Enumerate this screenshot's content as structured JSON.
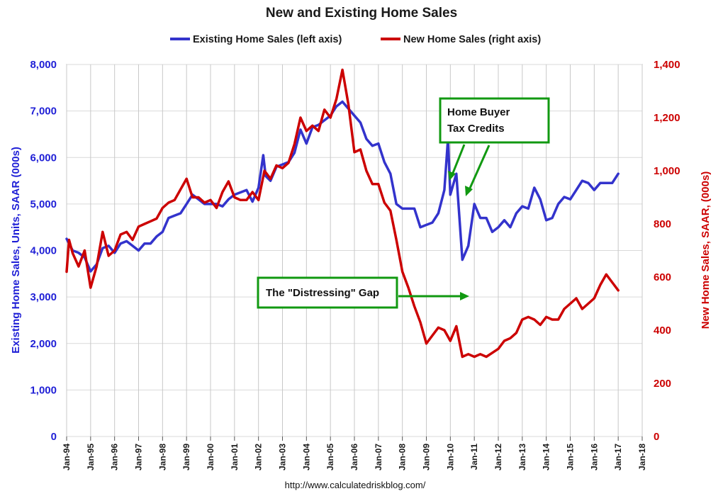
{
  "chart_data": {
    "type": "line",
    "title": "New and Existing Home Sales",
    "xlabel": "",
    "ylabel_left": "Existing Home Sales, Units, SAAR (000s)",
    "ylabel_right": "New Home Sales, SAAR, (000s)",
    "ylim_left": [
      0,
      8000
    ],
    "ylim_right": [
      0,
      1400
    ],
    "left_ticks": [
      "0",
      "1,000",
      "2,000",
      "3,000",
      "4,000",
      "5,000",
      "6,000",
      "7,000",
      "8,000"
    ],
    "right_ticks": [
      "0",
      "200",
      "400",
      "600",
      "800",
      "1,000",
      "1,200",
      "1,400"
    ],
    "x_ticks": [
      "Jan-94",
      "Jan-95",
      "Jan-96",
      "Jan-97",
      "Jan-98",
      "Jan-99",
      "Jan-00",
      "Jan-01",
      "Jan-02",
      "Jan-03",
      "Jan-04",
      "Jan-05",
      "Jan-06",
      "Jan-07",
      "Jan-08",
      "Jan-09",
      "Jan-10",
      "Jan-11",
      "Jan-12",
      "Jan-13",
      "Jan-14",
      "Jan-15",
      "Jan-16",
      "Jan-17",
      "Jan-18"
    ],
    "xlim": [
      1994.0,
      2018.0
    ],
    "grid": true,
    "legend_placement": "top",
    "series": [
      {
        "name": "Existing Home Sales (left axis)",
        "axis": "left",
        "color": "#3333cc",
        "points": [
          [
            1994.0,
            4250
          ],
          [
            1994.25,
            4000
          ],
          [
            1994.5,
            3950
          ],
          [
            1994.75,
            3850
          ],
          [
            1995.0,
            3550
          ],
          [
            1995.25,
            3700
          ],
          [
            1995.5,
            4050
          ],
          [
            1995.75,
            4100
          ],
          [
            1996.0,
            3950
          ],
          [
            1996.25,
            4150
          ],
          [
            1996.5,
            4200
          ],
          [
            1996.75,
            4100
          ],
          [
            1997.0,
            4000
          ],
          [
            1997.25,
            4150
          ],
          [
            1997.5,
            4150
          ],
          [
            1997.75,
            4300
          ],
          [
            1998.0,
            4400
          ],
          [
            1998.25,
            4700
          ],
          [
            1998.5,
            4750
          ],
          [
            1998.75,
            4800
          ],
          [
            1999.0,
            5000
          ],
          [
            1999.25,
            5200
          ],
          [
            1999.5,
            5100
          ],
          [
            1999.75,
            5000
          ],
          [
            2000.0,
            5000
          ],
          [
            2000.25,
            5000
          ],
          [
            2000.5,
            4950
          ],
          [
            2000.75,
            5100
          ],
          [
            2001.0,
            5200
          ],
          [
            2001.25,
            5250
          ],
          [
            2001.5,
            5300
          ],
          [
            2001.75,
            5050
          ],
          [
            2002.0,
            5350
          ],
          [
            2002.2,
            6050
          ],
          [
            2002.3,
            5600
          ],
          [
            2002.5,
            5500
          ],
          [
            2002.75,
            5800
          ],
          [
            2003.0,
            5850
          ],
          [
            2003.25,
            5900
          ],
          [
            2003.5,
            6100
          ],
          [
            2003.75,
            6600
          ],
          [
            2004.0,
            6300
          ],
          [
            2004.25,
            6650
          ],
          [
            2004.5,
            6700
          ],
          [
            2004.75,
            6800
          ],
          [
            2005.0,
            6900
          ],
          [
            2005.25,
            7100
          ],
          [
            2005.5,
            7200
          ],
          [
            2005.75,
            7050
          ],
          [
            2006.0,
            6900
          ],
          [
            2006.25,
            6750
          ],
          [
            2006.5,
            6400
          ],
          [
            2006.75,
            6250
          ],
          [
            2007.0,
            6300
          ],
          [
            2007.25,
            5900
          ],
          [
            2007.5,
            5650
          ],
          [
            2007.75,
            5000
          ],
          [
            2008.0,
            4900
          ],
          [
            2008.25,
            4900
          ],
          [
            2008.5,
            4900
          ],
          [
            2008.75,
            4500
          ],
          [
            2009.0,
            4550
          ],
          [
            2009.25,
            4600
          ],
          [
            2009.5,
            4800
          ],
          [
            2009.75,
            5300
          ],
          [
            2009.9,
            6400
          ],
          [
            2010.0,
            5200
          ],
          [
            2010.25,
            5650
          ],
          [
            2010.5,
            3800
          ],
          [
            2010.75,
            4100
          ],
          [
            2011.0,
            5000
          ],
          [
            2011.25,
            4700
          ],
          [
            2011.5,
            4700
          ],
          [
            2011.75,
            4400
          ],
          [
            2012.0,
            4500
          ],
          [
            2012.25,
            4650
          ],
          [
            2012.5,
            4500
          ],
          [
            2012.75,
            4800
          ],
          [
            2013.0,
            4950
          ],
          [
            2013.25,
            4900
          ],
          [
            2013.5,
            5350
          ],
          [
            2013.75,
            5100
          ],
          [
            2014.0,
            4650
          ],
          [
            2014.25,
            4700
          ],
          [
            2014.5,
            5000
          ],
          [
            2014.75,
            5150
          ],
          [
            2015.0,
            5100
          ],
          [
            2015.25,
            5300
          ],
          [
            2015.5,
            5500
          ],
          [
            2015.75,
            5450
          ],
          [
            2016.0,
            5300
          ],
          [
            2016.25,
            5450
          ],
          [
            2016.5,
            5450
          ],
          [
            2016.75,
            5450
          ],
          [
            2017.0,
            5650
          ]
        ]
      },
      {
        "name": "New Home Sales (right axis)",
        "axis": "right",
        "color": "#cc0000",
        "points": [
          [
            1994.0,
            620
          ],
          [
            1994.1,
            740
          ],
          [
            1994.25,
            690
          ],
          [
            1994.5,
            640
          ],
          [
            1994.75,
            700
          ],
          [
            1995.0,
            560
          ],
          [
            1995.25,
            640
          ],
          [
            1995.5,
            770
          ],
          [
            1995.75,
            680
          ],
          [
            1996.0,
            700
          ],
          [
            1996.25,
            760
          ],
          [
            1996.5,
            770
          ],
          [
            1996.75,
            740
          ],
          [
            1997.0,
            790
          ],
          [
            1997.25,
            800
          ],
          [
            1997.5,
            810
          ],
          [
            1997.75,
            820
          ],
          [
            1998.0,
            860
          ],
          [
            1998.25,
            880
          ],
          [
            1998.5,
            890
          ],
          [
            1998.75,
            930
          ],
          [
            1999.0,
            970
          ],
          [
            1999.25,
            900
          ],
          [
            1999.5,
            900
          ],
          [
            1999.75,
            880
          ],
          [
            2000.0,
            890
          ],
          [
            2000.25,
            860
          ],
          [
            2000.5,
            920
          ],
          [
            2000.75,
            960
          ],
          [
            2001.0,
            900
          ],
          [
            2001.25,
            890
          ],
          [
            2001.5,
            890
          ],
          [
            2001.75,
            920
          ],
          [
            2002.0,
            890
          ],
          [
            2002.25,
            1000
          ],
          [
            2002.5,
            970
          ],
          [
            2002.75,
            1020
          ],
          [
            2003.0,
            1010
          ],
          [
            2003.25,
            1030
          ],
          [
            2003.5,
            1100
          ],
          [
            2003.75,
            1200
          ],
          [
            2004.0,
            1150
          ],
          [
            2004.25,
            1170
          ],
          [
            2004.5,
            1150
          ],
          [
            2004.75,
            1230
          ],
          [
            2005.0,
            1200
          ],
          [
            2005.25,
            1270
          ],
          [
            2005.5,
            1380
          ],
          [
            2005.75,
            1250
          ],
          [
            2006.0,
            1070
          ],
          [
            2006.25,
            1080
          ],
          [
            2006.5,
            1000
          ],
          [
            2006.75,
            950
          ],
          [
            2007.0,
            950
          ],
          [
            2007.25,
            880
          ],
          [
            2007.5,
            850
          ],
          [
            2007.75,
            740
          ],
          [
            2008.0,
            620
          ],
          [
            2008.25,
            560
          ],
          [
            2008.5,
            490
          ],
          [
            2008.75,
            430
          ],
          [
            2009.0,
            350
          ],
          [
            2009.25,
            380
          ],
          [
            2009.5,
            410
          ],
          [
            2009.75,
            400
          ],
          [
            2010.0,
            360
          ],
          [
            2010.25,
            415
          ],
          [
            2010.5,
            300
          ],
          [
            2010.75,
            310
          ],
          [
            2011.0,
            300
          ],
          [
            2011.25,
            310
          ],
          [
            2011.5,
            300
          ],
          [
            2011.75,
            315
          ],
          [
            2012.0,
            330
          ],
          [
            2012.25,
            360
          ],
          [
            2012.5,
            370
          ],
          [
            2012.75,
            390
          ],
          [
            2013.0,
            440
          ],
          [
            2013.25,
            450
          ],
          [
            2013.5,
            440
          ],
          [
            2013.75,
            420
          ],
          [
            2014.0,
            450
          ],
          [
            2014.25,
            440
          ],
          [
            2014.5,
            440
          ],
          [
            2014.75,
            480
          ],
          [
            2015.0,
            500
          ],
          [
            2015.25,
            520
          ],
          [
            2015.5,
            480
          ],
          [
            2015.75,
            500
          ],
          [
            2016.0,
            520
          ],
          [
            2016.25,
            570
          ],
          [
            2016.5,
            610
          ],
          [
            2016.75,
            580
          ],
          [
            2017.0,
            550
          ]
        ]
      }
    ]
  },
  "annotations": {
    "tax_credits": [
      "Home Buyer",
      "Tax Credits"
    ],
    "gap": "The \"Distressing\" Gap"
  },
  "source": "http://www.calculatedriskblog.com/"
}
